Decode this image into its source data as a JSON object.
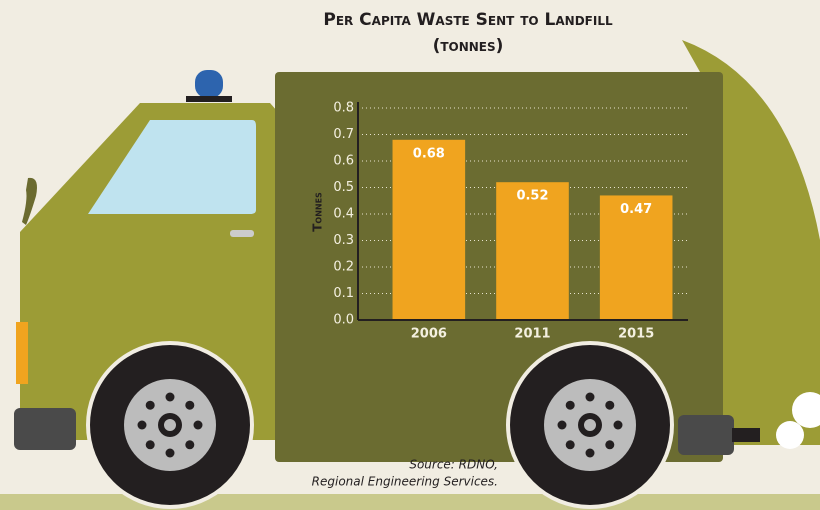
{
  "chart_data": {
    "type": "bar",
    "title": "Per Capita Waste Sent to Landfill",
    "subtitle": "(tonnes)",
    "y_label": "Tonnes",
    "categories": [
      "2006",
      "2011",
      "2015"
    ],
    "values": [
      0.68,
      0.52,
      0.47
    ],
    "color": "#f0a41f",
    "ylim": [
      0,
      0.8
    ],
    "yticks": [
      {
        "value": 0,
        "label": "0.0"
      },
      0.1,
      0.2,
      0.3,
      0.4,
      0.5,
      0.6,
      0.7,
      0.8
    ],
    "grid": true,
    "source": [
      "Source: RDNO,",
      "Regional Engineering Services."
    ]
  }
}
